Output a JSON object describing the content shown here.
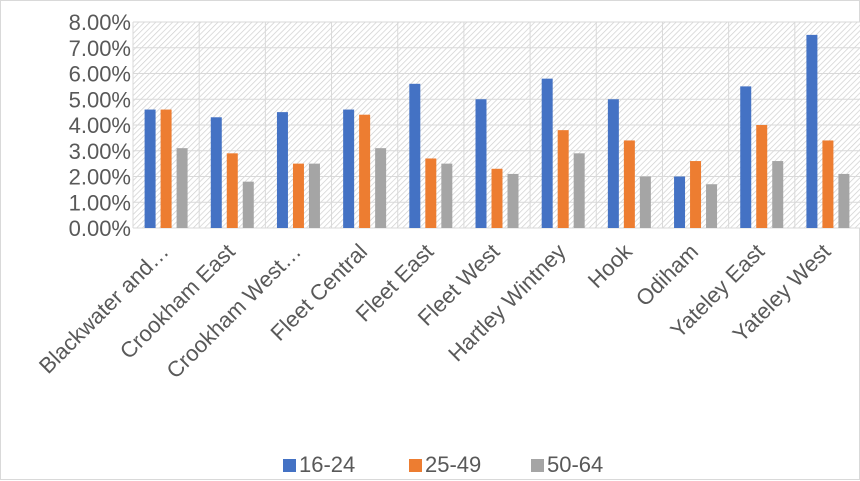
{
  "chart_data": {
    "type": "bar",
    "title": "",
    "xlabel": "",
    "ylabel": "",
    "categories": [
      "Blackwater and…",
      "Crookham East",
      "Crookham West…",
      "Fleet Central",
      "Fleet East",
      "Fleet West",
      "Hartley Wintney",
      "Hook",
      "Odiham",
      "Yateley East",
      "Yateley West"
    ],
    "series": [
      {
        "name": "16-24",
        "color": "#4472c4",
        "values": [
          4.6,
          4.3,
          4.5,
          4.6,
          5.6,
          5.0,
          5.8,
          5.0,
          2.0,
          5.5,
          7.5
        ]
      },
      {
        "name": "25-49",
        "color": "#ed7d31",
        "values": [
          4.6,
          2.9,
          2.5,
          4.4,
          2.7,
          2.3,
          3.8,
          3.4,
          2.6,
          4.0,
          3.4
        ]
      },
      {
        "name": "50-64",
        "color": "#a5a5a5",
        "values": [
          3.1,
          1.8,
          2.5,
          3.1,
          2.5,
          2.1,
          2.9,
          2.0,
          1.7,
          2.6,
          2.1
        ]
      }
    ],
    "ylim": [
      0,
      8
    ],
    "ytick_step": 1,
    "ytick_labels": [
      "0.00%",
      "1.00%",
      "2.00%",
      "3.00%",
      "4.00%",
      "5.00%",
      "6.00%",
      "7.00%",
      "8.00%"
    ],
    "grid": true,
    "plot_background": "hatched",
    "legend_position": "bottom"
  }
}
